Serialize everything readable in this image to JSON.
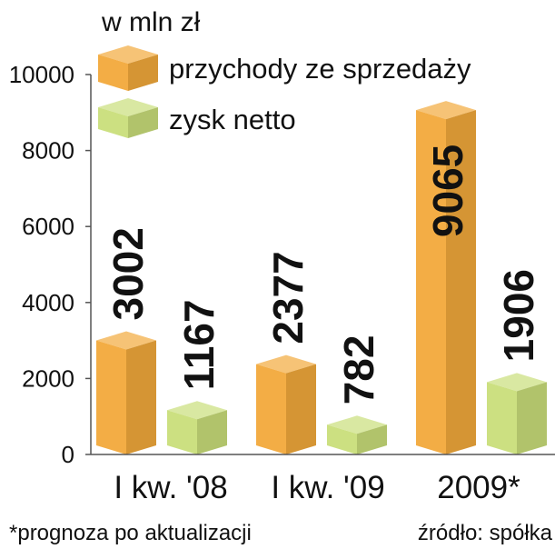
{
  "chart_data": {
    "type": "bar",
    "unit_label": "w mln zł",
    "categories": [
      "I kw. '08",
      "I kw. '09",
      "2009*"
    ],
    "series": [
      {
        "name": "przychody ze sprzedaży",
        "values": [
          3002,
          2377,
          9065
        ],
        "color": "#F2A93B"
      },
      {
        "name": "zysk netto",
        "values": [
          1167,
          782,
          1906
        ],
        "color": "#C9DE7A"
      }
    ],
    "ylim": [
      0,
      10000
    ],
    "yticks": [
      0,
      2000,
      4000,
      6000,
      8000,
      10000
    ],
    "legend_position": "top-left",
    "grid": false,
    "footnote": "*prognoza po aktualizacji",
    "source": "źródło: spółka"
  }
}
